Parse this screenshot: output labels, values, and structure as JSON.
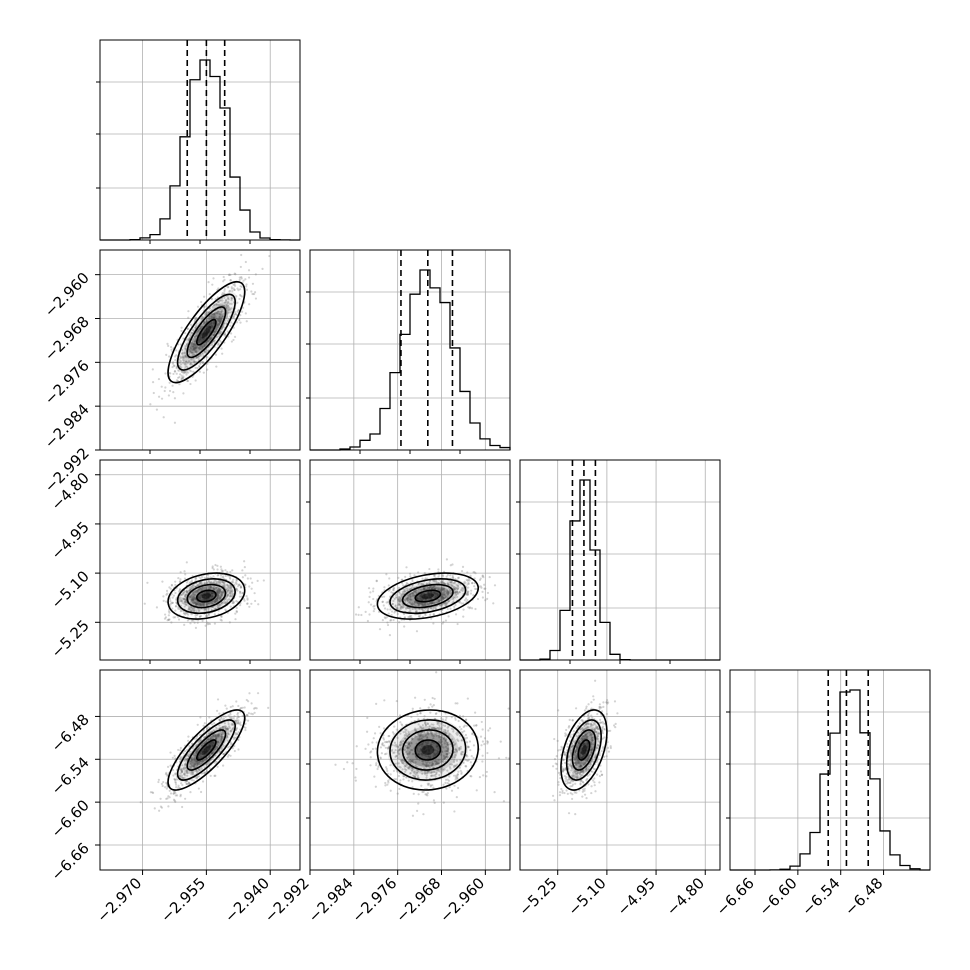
{
  "chart_data": {
    "type": "corner",
    "title": "",
    "params": [
      {
        "index": 0,
        "center": -2.955,
        "sigma": 0.0045,
        "range": [
          -2.98,
          -2.933
        ],
        "ticks": [
          "-2.970",
          "-2.955",
          "-2.940"
        ]
      },
      {
        "index": 1,
        "center": -2.9705,
        "sigma": 0.0046,
        "range": [
          -2.992,
          -2.9555
        ],
        "ticks": [
          "-2.992",
          "-2.984",
          "-2.976",
          "-2.968",
          "-2.960"
        ]
      },
      {
        "index": 2,
        "center": -5.17,
        "sigma": 0.035,
        "range": [
          -5.365,
          -4.755
        ],
        "ticks": [
          "-5.25",
          "-5.10",
          "-4.95",
          "-4.80"
        ]
      },
      {
        "index": 3,
        "center": -6.527,
        "sigma": 0.028,
        "range": [
          -6.695,
          -6.415
        ],
        "ticks": [
          "-6.66",
          "-6.60",
          "-6.54",
          "-6.48"
        ]
      }
    ],
    "quantile_lines": [
      [
        -2.9595,
        -2.955,
        -2.9507
      ],
      [
        -2.9754,
        -2.9705,
        -2.966
      ],
      [
        -5.205,
        -5.17,
        -5.135
      ],
      [
        -6.5575,
        -6.532,
        -6.5015
      ]
    ],
    "correlations": {
      "0-1": 0.8,
      "0-2": 0.25,
      "1-2": 0.35,
      "0-3": 0.8,
      "1-3": 0.05,
      "2-3": 0.45
    },
    "contour_levels_sigma": [
      0.5,
      1.0,
      1.5,
      2.0
    ],
    "grid": true,
    "histogram_style": "step",
    "colors": {
      "line": "#000000",
      "grid": "#b0b0b0",
      "points": "#808080"
    }
  }
}
